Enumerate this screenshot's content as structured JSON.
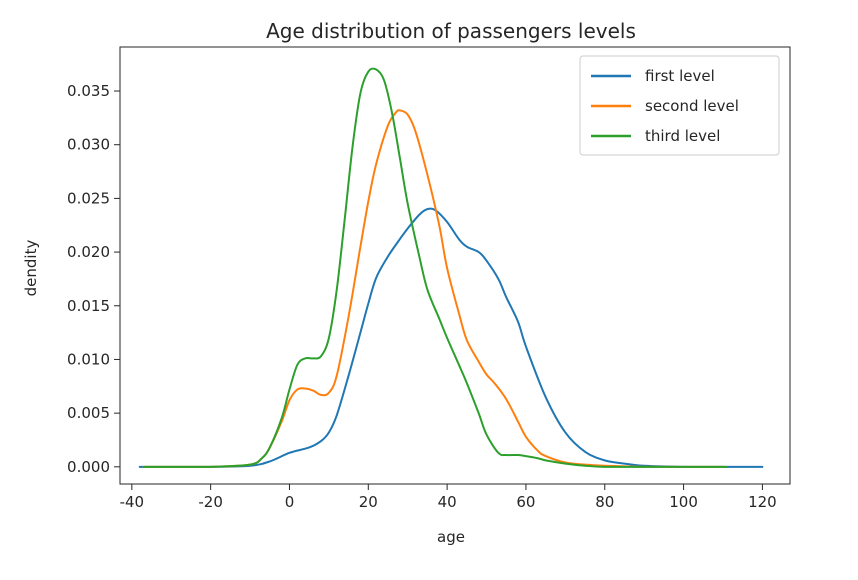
{
  "chart_data": {
    "type": "line",
    "title": "Age distribution of passengers levels",
    "xlabel": "age",
    "ylabel": "dendity",
    "xlim": [
      -43,
      127
    ],
    "ylim": [
      -0.0016,
      0.0391
    ],
    "xticks": [
      -40,
      -20,
      0,
      20,
      40,
      60,
      80,
      100,
      120
    ],
    "xtick_labels": [
      "-40",
      "-20",
      "0",
      "20",
      "40",
      "60",
      "80",
      "100",
      "120"
    ],
    "yticks": [
      0.0,
      0.005,
      0.01,
      0.015,
      0.02,
      0.025,
      0.03,
      0.035
    ],
    "ytick_labels": [
      "0.000",
      "0.005",
      "0.010",
      "0.015",
      "0.020",
      "0.025",
      "0.030",
      "0.035"
    ],
    "legend_position": "top-right",
    "grid": false,
    "series": [
      {
        "name": "first level",
        "color": "#1f77b4",
        "x": [
          -38,
          -20,
          -10,
          -5,
          0,
          5,
          8,
          10,
          12,
          15,
          18,
          20,
          22,
          25,
          28,
          30,
          33,
          35,
          37,
          40,
          43,
          45,
          48,
          50,
          53,
          55,
          58,
          60,
          65,
          70,
          75,
          80,
          85,
          90,
          100,
          110,
          120
        ],
        "y": [
          0.0,
          0.0,
          0.0001,
          0.0005,
          0.0013,
          0.0018,
          0.0024,
          0.0032,
          0.0048,
          0.0085,
          0.0125,
          0.0152,
          0.0176,
          0.0196,
          0.0212,
          0.0222,
          0.0235,
          0.024,
          0.0239,
          0.0228,
          0.0212,
          0.0205,
          0.02,
          0.0192,
          0.0175,
          0.0158,
          0.0135,
          0.0112,
          0.0065,
          0.0032,
          0.0014,
          0.0006,
          0.0003,
          0.0001,
          0.0,
          0.0,
          0.0
        ]
      },
      {
        "name": "second level",
        "color": "#ff7f0e",
        "x": [
          -37,
          -20,
          -10,
          -7,
          -5,
          -2,
          0,
          2,
          4,
          6,
          8,
          10,
          12,
          15,
          18,
          20,
          22,
          25,
          27,
          28,
          30,
          32,
          35,
          38,
          40,
          43,
          45,
          48,
          50,
          52,
          55,
          58,
          60,
          63,
          65,
          70,
          75,
          80,
          90,
          100,
          110
        ],
        "y": [
          0.0,
          0.0,
          0.0002,
          0.0008,
          0.0018,
          0.0042,
          0.0062,
          0.0072,
          0.0073,
          0.0071,
          0.0067,
          0.0069,
          0.0085,
          0.014,
          0.0205,
          0.0247,
          0.0282,
          0.0318,
          0.033,
          0.0332,
          0.0328,
          0.0312,
          0.0272,
          0.0225,
          0.0185,
          0.0143,
          0.0118,
          0.0098,
          0.0086,
          0.0078,
          0.0063,
          0.0042,
          0.0028,
          0.0015,
          0.001,
          0.0004,
          0.0002,
          0.0001,
          0.0,
          0.0,
          0.0
        ]
      },
      {
        "name": "third level",
        "color": "#2ca02c",
        "x": [
          -37,
          -20,
          -10,
          -7,
          -5,
          -2,
          0,
          2,
          4,
          6,
          8,
          10,
          12,
          14,
          16,
          18,
          20,
          22,
          24,
          26,
          28,
          30,
          33,
          35,
          38,
          40,
          43,
          45,
          48,
          50,
          53,
          55,
          58,
          60,
          63,
          65,
          70,
          75,
          80,
          90,
          100,
          111
        ],
        "y": [
          0.0,
          0.0,
          0.0002,
          0.0008,
          0.0018,
          0.0045,
          0.0072,
          0.0095,
          0.0101,
          0.0101,
          0.0103,
          0.012,
          0.0165,
          0.023,
          0.0298,
          0.0348,
          0.0368,
          0.037,
          0.036,
          0.033,
          0.0288,
          0.0245,
          0.0195,
          0.0165,
          0.0138,
          0.012,
          0.0095,
          0.0078,
          0.005,
          0.003,
          0.0013,
          0.0011,
          0.0011,
          0.001,
          0.0008,
          0.0006,
          0.0003,
          0.0001,
          0.0,
          0.0,
          0.0,
          0.0
        ]
      }
    ]
  }
}
